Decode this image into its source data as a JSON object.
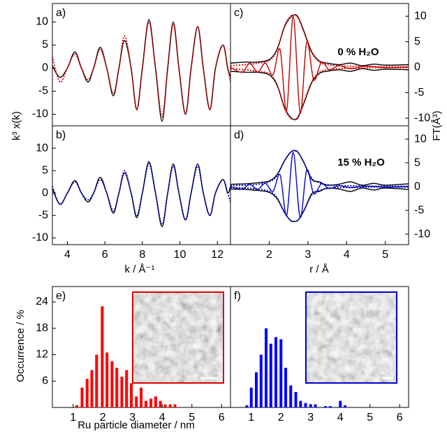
{
  "chart_data": [
    {
      "type": "line",
      "panel_label": "a)",
      "y_label": "k³ x(k)",
      "xlim": [
        3.2,
        12.7
      ],
      "ylim": [
        -12.5,
        14
      ],
      "yticks": [
        -10,
        -5,
        0,
        5,
        10
      ],
      "x": [
        3.2,
        3.6,
        4.0,
        4.4,
        4.75,
        5.1,
        5.4,
        5.75,
        6.1,
        6.45,
        6.75,
        7.05,
        7.4,
        7.7,
        8.0,
        8.35,
        8.7,
        9.05,
        9.35,
        9.65,
        9.95,
        10.3,
        10.6,
        10.95,
        11.25,
        11.6,
        11.9,
        12.3,
        12.55,
        12.7
      ],
      "series": [
        {
          "color": "#000000",
          "values": [
            0.5,
            -2,
            0,
            3.5,
            0,
            -3,
            0,
            4.5,
            0,
            -6,
            0,
            6,
            0,
            -9,
            0,
            10.5,
            0,
            -11.5,
            0,
            10,
            0,
            -10,
            0,
            9,
            0,
            -9,
            0,
            5,
            0,
            -2
          ]
        },
        {
          "color": "#e00000",
          "dash": true,
          "values": [
            2.5,
            -3,
            0,
            3,
            0,
            -2.5,
            0,
            4,
            0,
            -5.5,
            0,
            7,
            0,
            -9,
            0,
            10,
            0,
            -10.5,
            0,
            9.5,
            0,
            -10,
            0,
            9,
            0,
            -9,
            0,
            5,
            0,
            -3
          ]
        }
      ]
    },
    {
      "type": "line",
      "panel_label": "b)",
      "x_label": "k / Å⁻¹",
      "xlim": [
        3.2,
        12.7
      ],
      "ylim": [
        -11.5,
        15
      ],
      "xticks": [
        4,
        6,
        8,
        10,
        12
      ],
      "yticks": [
        -10,
        -5,
        0,
        5,
        10
      ],
      "x": [
        3.2,
        3.6,
        4.0,
        4.4,
        4.75,
        5.1,
        5.4,
        5.75,
        6.1,
        6.45,
        6.75,
        7.05,
        7.4,
        7.7,
        8.0,
        8.35,
        8.7,
        9.05,
        9.35,
        9.65,
        9.95,
        10.3,
        10.6,
        10.95,
        11.25,
        11.6,
        11.9,
        12.3,
        12.55,
        12.7
      ],
      "series": [
        {
          "color": "#000000",
          "values": [
            1,
            -2.5,
            0,
            2.8,
            0,
            -2,
            0,
            3.5,
            0,
            -4.5,
            0,
            4.5,
            0,
            -5.5,
            0,
            7,
            0,
            -7.5,
            0,
            6.5,
            0,
            -6,
            0,
            6.5,
            0,
            -5,
            0,
            3,
            0,
            1.5
          ]
        },
        {
          "color": "#0000cc",
          "dash": true,
          "values": [
            1.5,
            -2.5,
            0,
            2.5,
            0,
            -1.5,
            0,
            3,
            0,
            -4,
            0,
            5,
            0,
            -5,
            0,
            6.5,
            0,
            -7,
            0,
            6,
            0,
            -6,
            0,
            6,
            0,
            -5,
            0,
            3,
            0,
            -2
          ]
        }
      ]
    },
    {
      "type": "line",
      "panel_label": "c)",
      "annotation": "0 % H₂O",
      "annotation_color": "#e00000",
      "y_label": "FT(Å³)",
      "y_axis_side": "right",
      "xlim": [
        1.0,
        5.6
      ],
      "ylim": [
        -11.5,
        12.5
      ],
      "yticks": [
        -10,
        -5,
        0,
        5,
        10
      ],
      "series": [
        {
          "color": "#000000",
          "x": [
            1.0,
            1.4,
            1.7,
            2.0,
            2.2,
            2.4,
            2.55,
            2.65,
            2.75,
            2.9,
            3.1,
            3.3,
            3.5,
            3.8,
            4.1,
            4.4,
            4.7,
            5.0,
            5.6
          ],
          "values": [
            0.8,
            1,
            1,
            1.5,
            3.5,
            8,
            9.8,
            10.3,
            9.8,
            7,
            3,
            1.2,
            0.8,
            0.5,
            0.8,
            0.3,
            0.6,
            0.4,
            0.5
          ]
        },
        {
          "color": "#000000",
          "x": [
            1.0,
            1.4,
            1.7,
            2.0,
            2.2,
            2.4,
            2.55,
            2.65,
            2.75,
            2.9,
            3.1,
            3.3,
            3.5,
            3.8,
            4.1,
            4.4,
            4.7,
            5.0,
            5.6
          ],
          "values": [
            -0.8,
            -1,
            -1,
            -1.5,
            -3.5,
            -8,
            -9.8,
            -10.3,
            -9.8,
            -7,
            -3,
            -1.2,
            -0.8,
            -0.5,
            -0.8,
            -0.3,
            -0.6,
            -0.4,
            -0.5
          ]
        },
        {
          "color": "#c00000",
          "x": [
            1.0,
            1.3,
            1.5,
            1.7,
            1.9,
            2.1,
            2.28,
            2.45,
            2.62,
            2.8,
            2.97,
            3.15,
            3.35,
            3.55,
            3.8,
            4.1,
            4.5,
            5.0,
            5.6
          ],
          "values": [
            0,
            -1,
            0.8,
            -1,
            0.8,
            -1.5,
            3.5,
            -8.5,
            10,
            -9,
            5,
            -2.5,
            1,
            -0.5,
            0.3,
            -0.3,
            0.2,
            -0.1,
            0
          ]
        },
        {
          "color": "#e00000",
          "dash": true,
          "x": [
            1.0,
            1.4,
            1.7,
            2.0,
            2.2,
            2.4,
            2.55,
            2.65,
            2.75,
            2.9,
            3.1,
            3.3,
            3.5,
            3.8,
            4.1,
            4.4,
            4.7,
            5.0,
            5.6
          ],
          "values": [
            0.3,
            0.5,
            0.8,
            1.3,
            3.3,
            8.2,
            10,
            10.2,
            9.6,
            6.8,
            2.8,
            1,
            0.5,
            0.3,
            0.2,
            0.2,
            0.1,
            0.1,
            0.1
          ]
        },
        {
          "color": "#e00000",
          "dash": true,
          "x": [
            1.0,
            1.4,
            1.7,
            2.0,
            2.2,
            2.4,
            2.55,
            2.65,
            2.75,
            2.9,
            3.1,
            3.3,
            3.5,
            3.8,
            4.1,
            4.4,
            4.7,
            5.0,
            5.6
          ],
          "values": [
            -0.3,
            -0.5,
            -0.8,
            -1.3,
            -3.3,
            -8.2,
            -10,
            -10.2,
            -9.6,
            -6.8,
            -2.8,
            -1,
            -0.5,
            -0.3,
            -0.2,
            -0.2,
            -0.1,
            -0.1,
            -0.1
          ]
        }
      ]
    },
    {
      "type": "line",
      "panel_label": "d)",
      "annotation": "15 % H₂O",
      "annotation_color": "#0000cc",
      "x_label": "r / Å",
      "y_axis_side": "right",
      "xlim": [
        1.0,
        5.6
      ],
      "ylim": [
        -12.2,
        12.8
      ],
      "xticks": [
        2,
        3,
        4,
        5
      ],
      "yticks": [
        -10,
        -5,
        0,
        5,
        10
      ],
      "series": [
        {
          "color": "#000000",
          "x": [
            1.0,
            1.4,
            1.7,
            2.0,
            2.2,
            2.4,
            2.55,
            2.65,
            2.75,
            2.9,
            3.1,
            3.3,
            3.5,
            3.8,
            4.1,
            4.4,
            4.7,
            5.0,
            5.6
          ],
          "values": [
            0.5,
            0.6,
            0.8,
            1.2,
            2.5,
            5.5,
            7.2,
            7.6,
            7.2,
            5,
            1.5,
            1,
            0.3,
            0.5,
            1,
            0.3,
            0.7,
            0.3,
            0.6
          ]
        },
        {
          "color": "#000000",
          "x": [
            1.0,
            1.4,
            1.7,
            2.0,
            2.2,
            2.4,
            2.55,
            2.65,
            2.75,
            2.9,
            3.1,
            3.3,
            3.5,
            3.8,
            4.1,
            4.4,
            4.7,
            5.0,
            5.6
          ],
          "values": [
            -0.5,
            -0.6,
            -0.8,
            -1.2,
            -2.5,
            -5.5,
            -7.1,
            -7.3,
            -7,
            -5,
            -1.5,
            -1,
            -0.3,
            -0.5,
            -1,
            -0.3,
            -0.7,
            -0.3,
            -0.6
          ]
        },
        {
          "color": "#0000cc",
          "x": [
            1.0,
            1.3,
            1.5,
            1.7,
            1.9,
            2.1,
            2.28,
            2.45,
            2.62,
            2.8,
            2.97,
            3.15,
            3.35,
            3.55,
            3.8,
            4.1,
            4.5,
            5.0,
            5.6
          ],
          "values": [
            0,
            -0.5,
            0.5,
            -0.6,
            0.7,
            -1,
            2.5,
            -6,
            7.2,
            -6.5,
            3.5,
            -1.5,
            0.6,
            -0.4,
            0.2,
            -0.2,
            0.1,
            -0.1,
            0
          ]
        },
        {
          "color": "#0000cc",
          "dash": true,
          "x": [
            1.0,
            1.4,
            1.7,
            2.0,
            2.2,
            2.4,
            2.55,
            2.65,
            2.75,
            2.9,
            3.1,
            3.3,
            3.5,
            3.8,
            4.1,
            4.4,
            4.7,
            5.0,
            5.6
          ],
          "values": [
            0.2,
            0.3,
            0.5,
            1,
            2.3,
            5.5,
            7.2,
            7.5,
            7.1,
            5,
            1.8,
            0.8,
            0.4,
            0.2,
            0.2,
            0.1,
            0.1,
            0.1,
            0.1
          ]
        },
        {
          "color": "#0000cc",
          "dash": true,
          "x": [
            1.0,
            1.4,
            1.7,
            2.0,
            2.2,
            2.4,
            2.55,
            2.65,
            2.75,
            2.9,
            3.1,
            3.3,
            3.5,
            3.8,
            4.1,
            4.4,
            4.7,
            5.0,
            5.6
          ],
          "values": [
            -0.2,
            -0.3,
            -0.5,
            -1,
            -2.3,
            -5.5,
            -7.1,
            -7.3,
            -7,
            -5,
            -1.8,
            -0.8,
            -0.4,
            -0.2,
            -0.2,
            -0.1,
            -0.1,
            -0.1,
            -0.1
          ]
        }
      ]
    },
    {
      "type": "bar",
      "panel_label": "e)",
      "y_label": "Occurrence  / %",
      "x_label": "Ru particle diameter / nm",
      "color": "#ff0000",
      "xlim": [
        0.3,
        6.3
      ],
      "ylim": [
        0,
        27.5
      ],
      "xticks": [
        1,
        2,
        3,
        4,
        5,
        6
      ],
      "yticks": [
        6,
        12,
        18,
        24
      ],
      "x": [
        1.12,
        1.3,
        1.47,
        1.63,
        1.79,
        1.98,
        2.14,
        2.31,
        2.47,
        2.64,
        2.8,
        2.96,
        3.13,
        3.29,
        3.45,
        3.62,
        3.78,
        3.94,
        4.1,
        4.27,
        4.43
      ],
      "values": [
        0.5,
        4.5,
        6.5,
        8.5,
        12,
        23,
        12.5,
        10.5,
        9,
        7,
        8.5,
        5.5,
        2.5,
        4.5,
        1.5,
        2,
        2.5,
        1.5,
        0.7,
        0.7,
        0.7
      ]
    },
    {
      "type": "bar",
      "panel_label": "f)",
      "color": "#0000ff",
      "xlim": [
        0.3,
        6.3
      ],
      "ylim": [
        0,
        27.5
      ],
      "xticks": [
        1,
        2,
        3,
        4,
        5,
        6
      ],
      "x": [
        0.85,
        1.0,
        1.17,
        1.33,
        1.5,
        1.66,
        1.83,
        2.0,
        2.16,
        2.33,
        2.5,
        2.66,
        2.83,
        3.0,
        3.16,
        3.5,
        3.66,
        4.0,
        4.16
      ],
      "values": [
        0.5,
        4.5,
        8,
        12,
        18,
        14.5,
        16,
        15.5,
        9,
        5,
        3.5,
        1.5,
        1,
        0.7,
        0.7,
        0.3,
        0.3,
        1.5,
        0.5
      ]
    }
  ]
}
